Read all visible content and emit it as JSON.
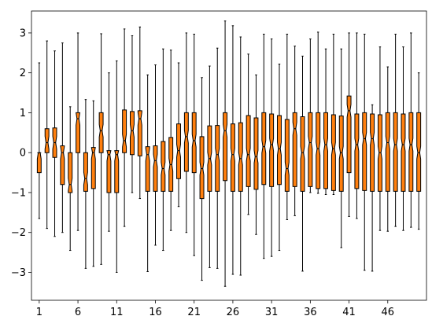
{
  "chart_data": {
    "type": "boxplot",
    "notched": true,
    "box_color": "#ff7f0e",
    "edge_color": "#000000",
    "xlim": [
      0,
      51
    ],
    "ylim": [
      -3.7,
      3.55
    ],
    "x_tick_values": [
      1,
      6,
      11,
      16,
      21,
      26,
      31,
      36,
      41,
      46
    ],
    "x_tick_labels": [
      "1",
      "6",
      "11",
      "16",
      "21",
      "26",
      "31",
      "36",
      "41",
      "46"
    ],
    "y_tick_values": [
      -3,
      -2,
      -1,
      0,
      1,
      2,
      3
    ],
    "y_tick_labels": [
      "−3",
      "−2",
      "−1",
      "0",
      "1",
      "2",
      "3"
    ],
    "boxes": [
      {
        "x": 1,
        "min": -1.65,
        "q1": -0.5,
        "median": 0.0,
        "q3": 0.0,
        "max": 2.25
      },
      {
        "x": 2,
        "min": -1.9,
        "q1": 0.0,
        "median": 0.25,
        "q3": 0.6,
        "max": 2.8
      },
      {
        "x": 3,
        "min": -2.1,
        "q1": -0.12,
        "median": 0.25,
        "q3": 0.62,
        "max": 2.55
      },
      {
        "x": 4,
        "min": -2.0,
        "q1": -0.8,
        "median": 0.0,
        "q3": 0.17,
        "max": 2.75
      },
      {
        "x": 5,
        "min": -2.45,
        "q1": -1.0,
        "median": -0.8,
        "q3": 0.0,
        "max": 1.15
      },
      {
        "x": 6,
        "min": -1.95,
        "q1": 0.0,
        "median": 0.85,
        "q3": 1.0,
        "max": 3.0
      },
      {
        "x": 7,
        "min": -2.9,
        "q1": -0.97,
        "median": -0.65,
        "q3": 0.0,
        "max": 1.33
      },
      {
        "x": 8,
        "min": -2.85,
        "q1": -0.9,
        "median": 0.0,
        "q3": 0.13,
        "max": 1.3
      },
      {
        "x": 9,
        "min": -2.8,
        "q1": 0.0,
        "median": 0.55,
        "q3": 1.0,
        "max": 2.98
      },
      {
        "x": 10,
        "min": -1.97,
        "q1": -1.0,
        "median": -0.05,
        "q3": 0.05,
        "max": 2.0
      },
      {
        "x": 11,
        "min": -3.0,
        "q1": -1.0,
        "median": -0.05,
        "q3": 0.05,
        "max": 2.3
      },
      {
        "x": 12,
        "min": -1.85,
        "q1": 0.0,
        "median": 0.3,
        "q3": 1.07,
        "max": 3.1
      },
      {
        "x": 13,
        "min": -1.0,
        "q1": -0.05,
        "median": 0.55,
        "q3": 1.03,
        "max": 2.93
      },
      {
        "x": 14,
        "min": -1.15,
        "q1": -0.08,
        "median": 0.85,
        "q3": 1.05,
        "max": 3.15
      },
      {
        "x": 15,
        "min": -2.98,
        "q1": -0.97,
        "median": -0.05,
        "q3": 0.15,
        "max": 1.95
      },
      {
        "x": 16,
        "min": -2.32,
        "q1": -0.97,
        "median": -0.2,
        "q3": 0.17,
        "max": 2.2
      },
      {
        "x": 17,
        "min": -2.45,
        "q1": -0.97,
        "median": -0.4,
        "q3": 0.28,
        "max": 2.6
      },
      {
        "x": 18,
        "min": -1.95,
        "q1": -0.97,
        "median": -0.3,
        "q3": 0.38,
        "max": 2.57
      },
      {
        "x": 19,
        "min": -1.35,
        "q1": -0.65,
        "median": 0.05,
        "q3": 0.72,
        "max": 2.25
      },
      {
        "x": 20,
        "min": -2.0,
        "q1": -0.47,
        "median": 0.4,
        "q3": 1.0,
        "max": 3.0
      },
      {
        "x": 21,
        "min": -2.58,
        "q1": -0.5,
        "median": 0.3,
        "q3": 1.0,
        "max": 2.97
      },
      {
        "x": 22,
        "min": -3.2,
        "q1": -1.15,
        "median": -0.4,
        "q3": 0.4,
        "max": 1.88
      },
      {
        "x": 23,
        "min": -2.88,
        "q1": -0.97,
        "median": -0.15,
        "q3": 0.67,
        "max": 2.17
      },
      {
        "x": 24,
        "min": -2.9,
        "q1": -0.97,
        "median": -0.05,
        "q3": 0.68,
        "max": 2.62
      },
      {
        "x": 25,
        "min": -3.35,
        "q1": -0.7,
        "median": 0.55,
        "q3": 1.0,
        "max": 3.3
      },
      {
        "x": 26,
        "min": -3.05,
        "q1": -0.97,
        "median": -0.05,
        "q3": 0.72,
        "max": 3.18
      },
      {
        "x": 27,
        "min": -3.07,
        "q1": -0.97,
        "median": -0.15,
        "q3": 0.75,
        "max": 2.9
      },
      {
        "x": 28,
        "min": -1.55,
        "q1": -0.85,
        "median": -0.05,
        "q3": 0.93,
        "max": 2.47
      },
      {
        "x": 29,
        "min": -2.05,
        "q1": -0.92,
        "median": -0.1,
        "q3": 0.87,
        "max": 1.95
      },
      {
        "x": 30,
        "min": -2.65,
        "q1": -0.8,
        "median": 0.15,
        "q3": 1.0,
        "max": 2.97
      },
      {
        "x": 31,
        "min": -2.6,
        "q1": -0.85,
        "median": 0.2,
        "q3": 0.97,
        "max": 2.85
      },
      {
        "x": 32,
        "min": -2.45,
        "q1": -0.8,
        "median": 0.1,
        "q3": 0.93,
        "max": 2.22
      },
      {
        "x": 33,
        "min": -1.68,
        "q1": -0.97,
        "median": -0.4,
        "q3": 0.83,
        "max": 2.97
      },
      {
        "x": 34,
        "min": -1.58,
        "q1": -0.85,
        "median": 0.6,
        "q3": 1.0,
        "max": 2.67
      },
      {
        "x": 35,
        "min": -2.97,
        "q1": -0.97,
        "median": 0.0,
        "q3": 0.9,
        "max": 2.42
      },
      {
        "x": 36,
        "min": -1.0,
        "q1": -0.85,
        "median": 0.25,
        "q3": 1.0,
        "max": 2.85
      },
      {
        "x": 37,
        "min": -1.02,
        "q1": -0.9,
        "median": 0.1,
        "q3": 1.0,
        "max": 3.02
      },
      {
        "x": 38,
        "min": -1.05,
        "q1": -0.9,
        "median": 0.2,
        "q3": 1.0,
        "max": 2.6
      },
      {
        "x": 39,
        "min": -1.05,
        "q1": -0.95,
        "median": 0.1,
        "q3": 0.95,
        "max": 2.97
      },
      {
        "x": 40,
        "min": -2.38,
        "q1": -0.97,
        "median": 0.0,
        "q3": 0.92,
        "max": 2.6
      },
      {
        "x": 41,
        "min": -1.6,
        "q1": -0.5,
        "median": 1.05,
        "q3": 1.42,
        "max": 3.0
      },
      {
        "x": 42,
        "min": -1.65,
        "q1": -0.9,
        "median": 0.2,
        "q3": 0.97,
        "max": 3.0
      },
      {
        "x": 43,
        "min": -2.95,
        "q1": -0.95,
        "median": 0.35,
        "q3": 1.0,
        "max": 2.97
      },
      {
        "x": 44,
        "min": -2.97,
        "q1": -0.97,
        "median": 0.35,
        "q3": 0.97,
        "max": 1.2
      },
      {
        "x": 45,
        "min": -1.95,
        "q1": -0.97,
        "median": 0.0,
        "q3": 0.95,
        "max": 2.65
      },
      {
        "x": 46,
        "min": -1.97,
        "q1": -0.97,
        "median": 0.25,
        "q3": 1.0,
        "max": 2.15
      },
      {
        "x": 47,
        "min": -1.85,
        "q1": -0.97,
        "median": 0.2,
        "q3": 1.0,
        "max": 2.97
      },
      {
        "x": 48,
        "min": -1.95,
        "q1": -0.97,
        "median": 0.2,
        "q3": 0.97,
        "max": 2.65
      },
      {
        "x": 49,
        "min": -1.87,
        "q1": -0.97,
        "median": 0.2,
        "q3": 1.0,
        "max": 3.0
      },
      {
        "x": 50,
        "min": -1.92,
        "q1": -0.97,
        "median": 0.0,
        "q3": 1.0,
        "max": 2.0
      }
    ]
  }
}
